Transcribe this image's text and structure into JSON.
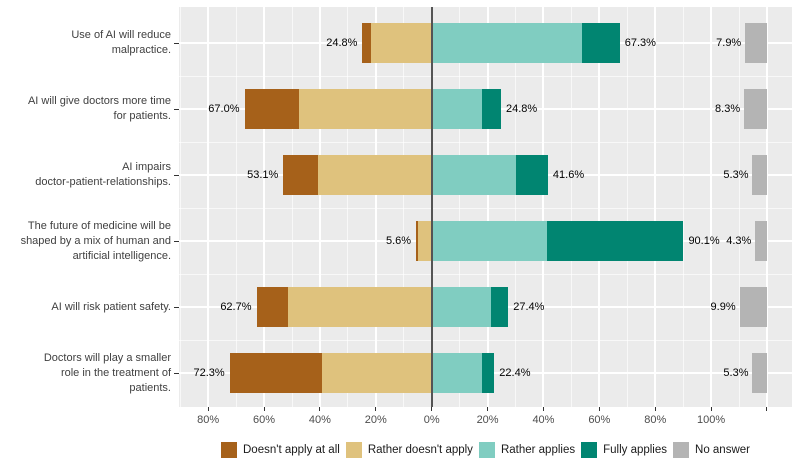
{
  "chart_data": {
    "type": "bar",
    "variant": "diverging-stacked-likert",
    "title": "",
    "orientation": "horizontal",
    "categories": [
      "Use of AI will reduce malpractice.",
      "AI will give doctors more time for patients.",
      "AI impairs doctor-patient-relationships.",
      "The future of medicine will be shaped by a mix of human and artificial intelligence.",
      "AI will risk patient safety.",
      "Doctors will play a smaller role in the treatment of patients."
    ],
    "category_label_lines": [
      [
        "Use of AI will reduce",
        "malpractice."
      ],
      [
        "AI will give doctors more time",
        "for patients."
      ],
      [
        "AI impairs",
        "doctor-patient-relationships."
      ],
      [
        "The future of medicine will be",
        "shaped by a mix of human and",
        "artificial intelligence."
      ],
      [
        "AI will risk patient safety."
      ],
      [
        "Doctors will play a smaller",
        "role in the treatment of",
        "patients."
      ]
    ],
    "series": [
      {
        "name": "Doesn't apply at all",
        "color": "#a6611a",
        "side": "negative",
        "values": [
          3.0,
          19.4,
          12.4,
          0.6,
          11.3,
          33.0
        ]
      },
      {
        "name": "Rather doesn't apply",
        "color": "#dfc27d",
        "side": "negative",
        "values": [
          21.8,
          47.6,
          40.7,
          5.0,
          51.4,
          39.3
        ]
      },
      {
        "name": "Rather applies",
        "color": "#80cdc1",
        "side": "positive",
        "values": [
          53.8,
          17.9,
          30.2,
          41.3,
          21.2,
          17.9
        ]
      },
      {
        "name": "Fully applies",
        "color": "#018571",
        "side": "positive",
        "values": [
          13.5,
          6.9,
          11.4,
          48.8,
          6.2,
          4.5
        ]
      },
      {
        "name": "No answer",
        "color": "#b4b4b4",
        "side": "offset-column",
        "values": [
          7.9,
          8.3,
          5.3,
          4.3,
          9.9,
          5.3
        ]
      }
    ],
    "left_total_labels": [
      "24.8%",
      "67.0%",
      "53.1%",
      "5.6%",
      "62.7%",
      "72.3%"
    ],
    "right_total_labels": [
      "67.3%",
      "24.8%",
      "41.6%",
      "90.1%",
      "27.4%",
      "22.4%"
    ],
    "no_answer_labels": [
      "7.9%",
      "8.3%",
      "5.3%",
      "4.3%",
      "9.9%",
      "5.3%"
    ],
    "x_axis": {
      "tick_values": [
        -80,
        -60,
        -40,
        -20,
        0,
        20,
        40,
        60,
        80,
        100
      ],
      "tick_labels": [
        "80%",
        "60%",
        "40%",
        "20%",
        "0%",
        "20%",
        "40%",
        "60%",
        "80%",
        "100%"
      ],
      "extra_unlabeled_tick_value": 120,
      "xlim": [
        -90.5,
        129
      ],
      "grid": true,
      "minor_step": 10,
      "unit": "percent"
    },
    "legend": {
      "position": "bottom",
      "labels": [
        "Doesn't apply at all",
        "Rather doesn't apply",
        "Rather applies",
        "Fully applies",
        "No answer"
      ]
    },
    "colors": {
      "panel_bg": "#ebebeb",
      "grid": "#ffffff",
      "zero_line": "#545454",
      "axis_text": "#4d4d4d",
      "category_text": "#404040",
      "data_label_text": "#000000",
      "no_answer": "#b4b4b4"
    }
  }
}
